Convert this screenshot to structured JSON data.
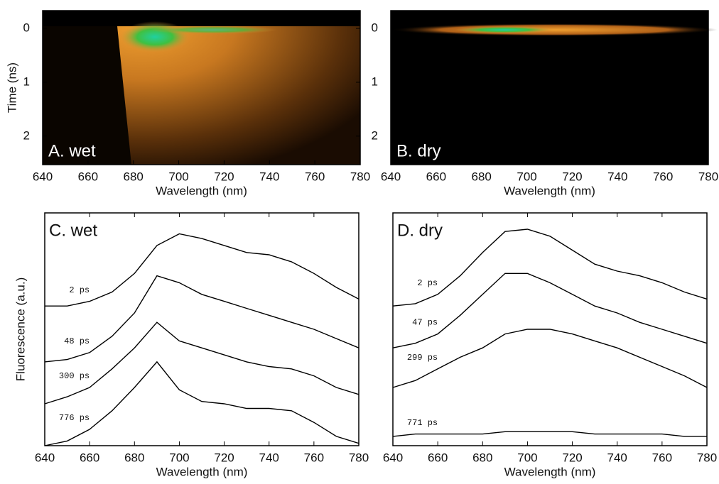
{
  "chart_data": [
    {
      "type": "image",
      "label": "A. wet",
      "xlabel": "Wavelength (nm)",
      "ylabel": "Time (ns)",
      "xlim": [
        640,
        780
      ],
      "xticks": [
        640,
        660,
        680,
        700,
        720,
        740,
        760,
        780
      ],
      "ylim": [
        2.53,
        -0.33
      ],
      "yticks": [
        0,
        1,
        2
      ]
    },
    {
      "type": "image",
      "label": "B. dry",
      "xlabel": "Wavelength (nm)",
      "xlim": [
        640,
        780
      ],
      "xticks": [
        640,
        660,
        680,
        700,
        720,
        740,
        760,
        780
      ],
      "ylim": [
        2.53,
        -0.33
      ],
      "yticks": [
        0,
        1,
        2
      ]
    },
    {
      "type": "line",
      "label": "C. wet",
      "xlabel": "Wavelength (nm)",
      "ylabel": "Fluorescence (a.u.)",
      "xlim": [
        640,
        780
      ],
      "xticks": [
        640,
        660,
        680,
        700,
        720,
        740,
        760,
        780
      ],
      "ylim": [
        0,
        100
      ],
      "x": [
        640,
        650,
        660,
        670,
        680,
        690,
        700,
        710,
        720,
        730,
        740,
        750,
        760,
        770,
        780
      ],
      "series": [
        {
          "name": "2 ps",
          "color": "#000000",
          "values": [
            60,
            60,
            62,
            66,
            74,
            86,
            91,
            89,
            86,
            83,
            82,
            79,
            74,
            68,
            63
          ]
        },
        {
          "name": "48 ps",
          "color": "#000000",
          "values": [
            36,
            37,
            40,
            47,
            57,
            73,
            70,
            65,
            62,
            59,
            56,
            53,
            50,
            46,
            42
          ]
        },
        {
          "name": "300 ps",
          "color": "#000000",
          "values": [
            18,
            21,
            25,
            33,
            42,
            53,
            45,
            42,
            39,
            36,
            34,
            33,
            30,
            25,
            22
          ]
        },
        {
          "name": "776 ps",
          "color": "#000000",
          "values": [
            0,
            2,
            7,
            15,
            25,
            36,
            24,
            19,
            18,
            16,
            16,
            15,
            10,
            4,
            1
          ]
        }
      ]
    },
    {
      "type": "line",
      "label": "D. dry",
      "xlabel": "Wavelength (nm)",
      "xlim": [
        640,
        780
      ],
      "xticks": [
        640,
        660,
        680,
        700,
        720,
        740,
        760,
        780
      ],
      "ylim": [
        0,
        100
      ],
      "x": [
        640,
        650,
        660,
        670,
        680,
        690,
        700,
        710,
        720,
        730,
        740,
        750,
        760,
        770,
        780
      ],
      "series": [
        {
          "name": "2 ps",
          "color": "#000000",
          "values": [
            60,
            61,
            65,
            73,
            83,
            92,
            93,
            90,
            84,
            78,
            75,
            73,
            70,
            66,
            63
          ]
        },
        {
          "name": "47 ps",
          "color": "#000000",
          "values": [
            42,
            44,
            48,
            56,
            65,
            74,
            74,
            70,
            65,
            60,
            57,
            53,
            50,
            47,
            44
          ]
        },
        {
          "name": "299 ps",
          "color": "#000000",
          "values": [
            25,
            28,
            33,
            38,
            42,
            48,
            50,
            50,
            48,
            45,
            42,
            38,
            34,
            30,
            25
          ]
        },
        {
          "name": "771 ps",
          "color": "#000000",
          "values": [
            4,
            5,
            5,
            5,
            5,
            6,
            6,
            6,
            6,
            5,
            5,
            5,
            5,
            4,
            4
          ]
        }
      ]
    }
  ]
}
